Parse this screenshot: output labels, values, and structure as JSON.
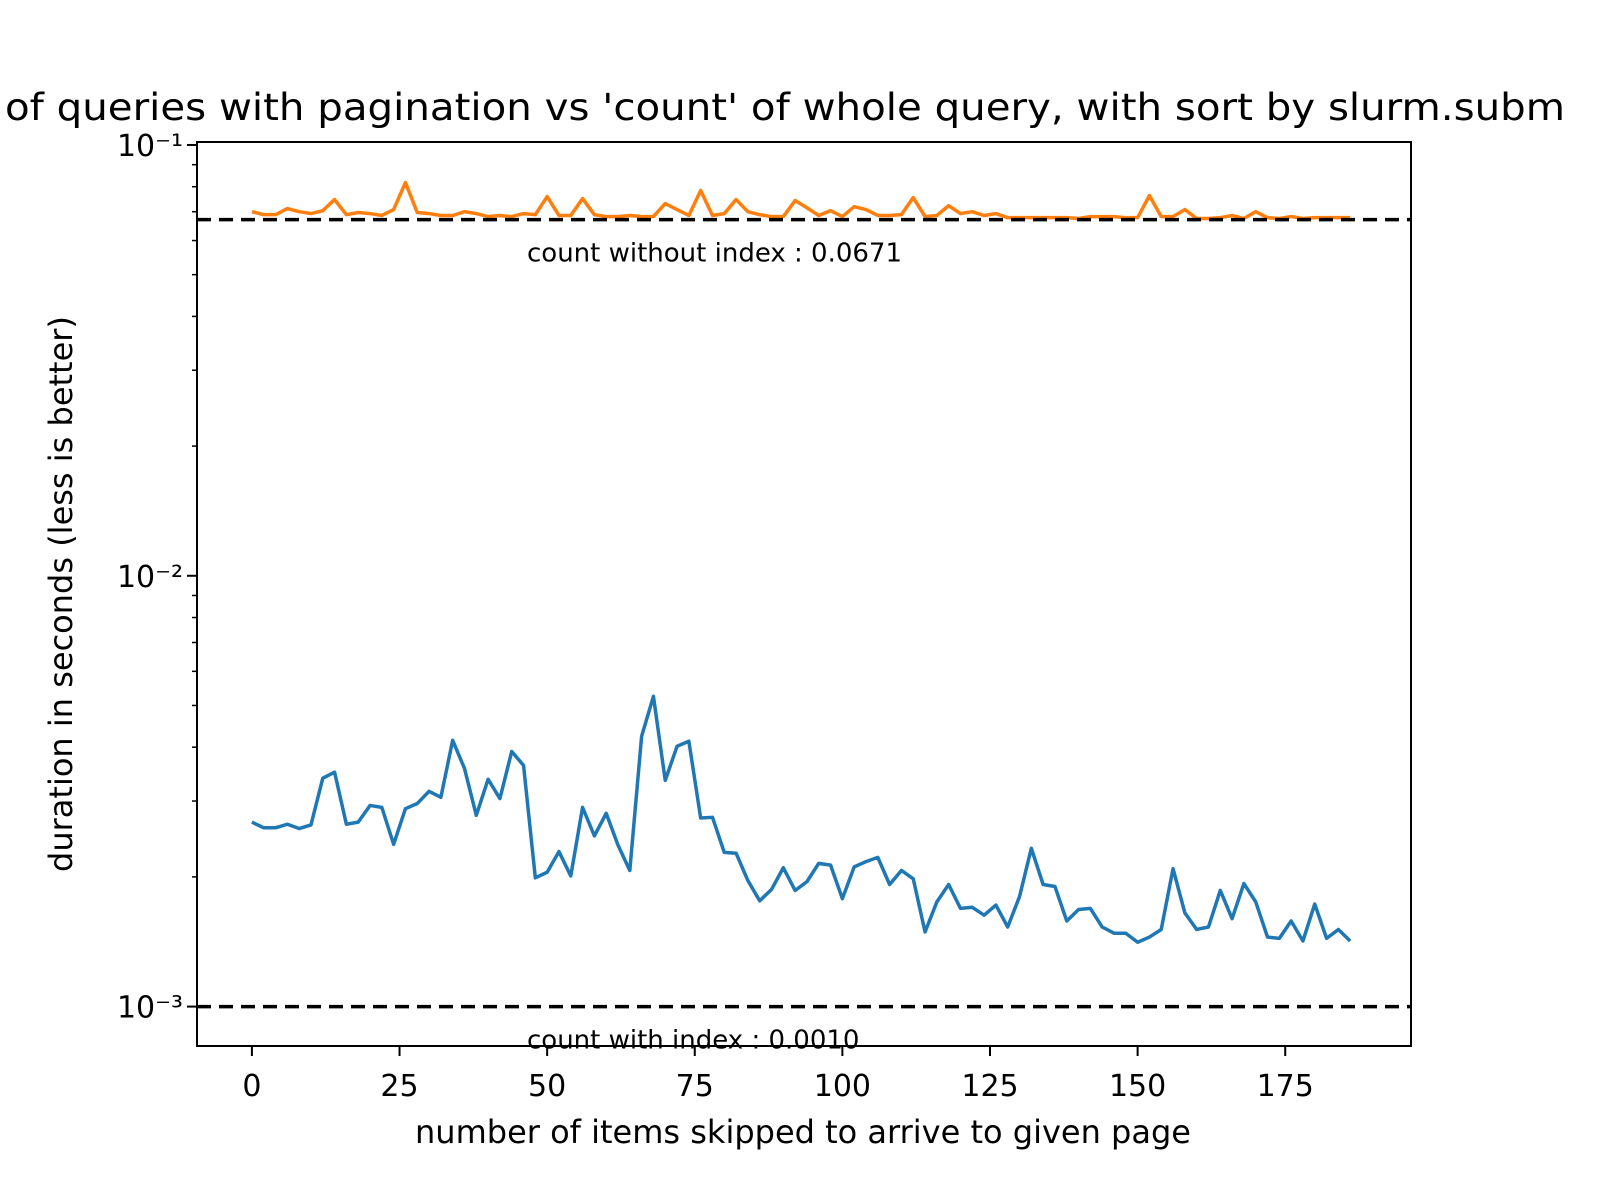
{
  "chart_data": {
    "type": "line",
    "title": "of queries with pagination vs 'count' of whole query, with sort by slurm.subm",
    "xlabel": "number of items skipped to arrive to given page",
    "ylabel": "duration in seconds (less is better)",
    "x": [
      0,
      2,
      4,
      6,
      8,
      10,
      12,
      14,
      16,
      18,
      20,
      22,
      24,
      26,
      28,
      30,
      32,
      34,
      36,
      38,
      40,
      42,
      44,
      46,
      48,
      50,
      52,
      54,
      56,
      58,
      60,
      62,
      64,
      66,
      68,
      70,
      72,
      74,
      76,
      78,
      80,
      82,
      84,
      86,
      88,
      90,
      92,
      94,
      96,
      98,
      100,
      102,
      104,
      106,
      108,
      110,
      112,
      114,
      116,
      118,
      120,
      122,
      124,
      126,
      128,
      130,
      132,
      134,
      136,
      138,
      140,
      142,
      144,
      146,
      148,
      150,
      152,
      154,
      156,
      158,
      160,
      162,
      164,
      166,
      168,
      170,
      172,
      174,
      176,
      178,
      180,
      182,
      184,
      186
    ],
    "series": [
      {
        "name": "with index",
        "color": "#1f77b4",
        "values": [
          0.00268,
          0.0026,
          0.0026,
          0.00265,
          0.00259,
          0.00264,
          0.00339,
          0.0035,
          0.00265,
          0.00268,
          0.00293,
          0.0029,
          0.00238,
          0.00288,
          0.00296,
          0.00316,
          0.00306,
          0.00415,
          0.00357,
          0.00278,
          0.00337,
          0.00304,
          0.00391,
          0.00363,
          0.00199,
          0.00205,
          0.00229,
          0.00201,
          0.0029,
          0.00249,
          0.00281,
          0.00237,
          0.00207,
          0.00424,
          0.00525,
          0.00335,
          0.00402,
          0.00413,
          0.00274,
          0.00275,
          0.00228,
          0.00227,
          0.00196,
          0.00176,
          0.00187,
          0.0021,
          0.00186,
          0.00195,
          0.00215,
          0.00213,
          0.00178,
          0.00211,
          0.00217,
          0.00222,
          0.00192,
          0.00207,
          0.00198,
          0.00149,
          0.00175,
          0.00192,
          0.00169,
          0.0017,
          0.00163,
          0.00172,
          0.00153,
          0.0018,
          0.00233,
          0.00192,
          0.0019,
          0.00158,
          0.00168,
          0.00169,
          0.00153,
          0.00148,
          0.00148,
          0.00141,
          0.00145,
          0.00151,
          0.00209,
          0.00165,
          0.00151,
          0.00153,
          0.00186,
          0.0016,
          0.00193,
          0.00175,
          0.00145,
          0.00144,
          0.00158,
          0.00142,
          0.00173,
          0.00144,
          0.00151,
          0.00142
        ]
      },
      {
        "name": "without index",
        "color": "#ff7f0e",
        "values": [
          0.07,
          0.0689,
          0.0689,
          0.0712,
          0.07,
          0.0693,
          0.0704,
          0.0747,
          0.0689,
          0.0697,
          0.0693,
          0.0686,
          0.0708,
          0.0818,
          0.0697,
          0.0693,
          0.0686,
          0.0686,
          0.07,
          0.0693,
          0.0682,
          0.0686,
          0.0682,
          0.0693,
          0.0689,
          0.0759,
          0.0686,
          0.0686,
          0.0751,
          0.0689,
          0.0682,
          0.0682,
          0.0686,
          0.0682,
          0.0682,
          0.0731,
          0.0708,
          0.0686,
          0.0784,
          0.0686,
          0.0693,
          0.0747,
          0.07,
          0.0689,
          0.0682,
          0.0682,
          0.0743,
          0.0715,
          0.0686,
          0.0704,
          0.0682,
          0.0719,
          0.0708,
          0.0686,
          0.0686,
          0.0689,
          0.0755,
          0.0682,
          0.0686,
          0.0723,
          0.0693,
          0.07,
          0.0686,
          0.0693,
          0.0678,
          0.0678,
          0.0678,
          0.0678,
          0.0678,
          0.0678,
          0.0675,
          0.0682,
          0.0682,
          0.0682,
          0.0678,
          0.0678,
          0.0763,
          0.0682,
          0.0682,
          0.0708,
          0.0675,
          0.0675,
          0.0678,
          0.0686,
          0.0675,
          0.07,
          0.0678,
          0.0675,
          0.0682,
          0.0675,
          0.0678,
          0.0678,
          0.0678,
          0.0678
        ]
      }
    ],
    "hlines": [
      {
        "value": 0.0671,
        "label": "count without index : 0.0671"
      },
      {
        "value": 0.001,
        "label": "count with index : 0.0010"
      }
    ],
    "xlim": [
      -9.3,
      196.3
    ],
    "xticks": [
      0,
      25,
      50,
      75,
      100,
      125,
      150,
      175
    ],
    "ylim": [
      0.00081,
      0.1016
    ],
    "yscale": "log",
    "yticks": [
      {
        "value": 0.001,
        "label": "10⁻³"
      },
      {
        "value": 0.01,
        "label": "10⁻²"
      },
      {
        "value": 0.1,
        "label": "10⁻¹"
      }
    ],
    "yminorticks": [
      0.002,
      0.003,
      0.004,
      0.005,
      0.006,
      0.007,
      0.008,
      0.009,
      0.02,
      0.03,
      0.04,
      0.05,
      0.06,
      0.07,
      0.08,
      0.09
    ],
    "grid": false
  }
}
